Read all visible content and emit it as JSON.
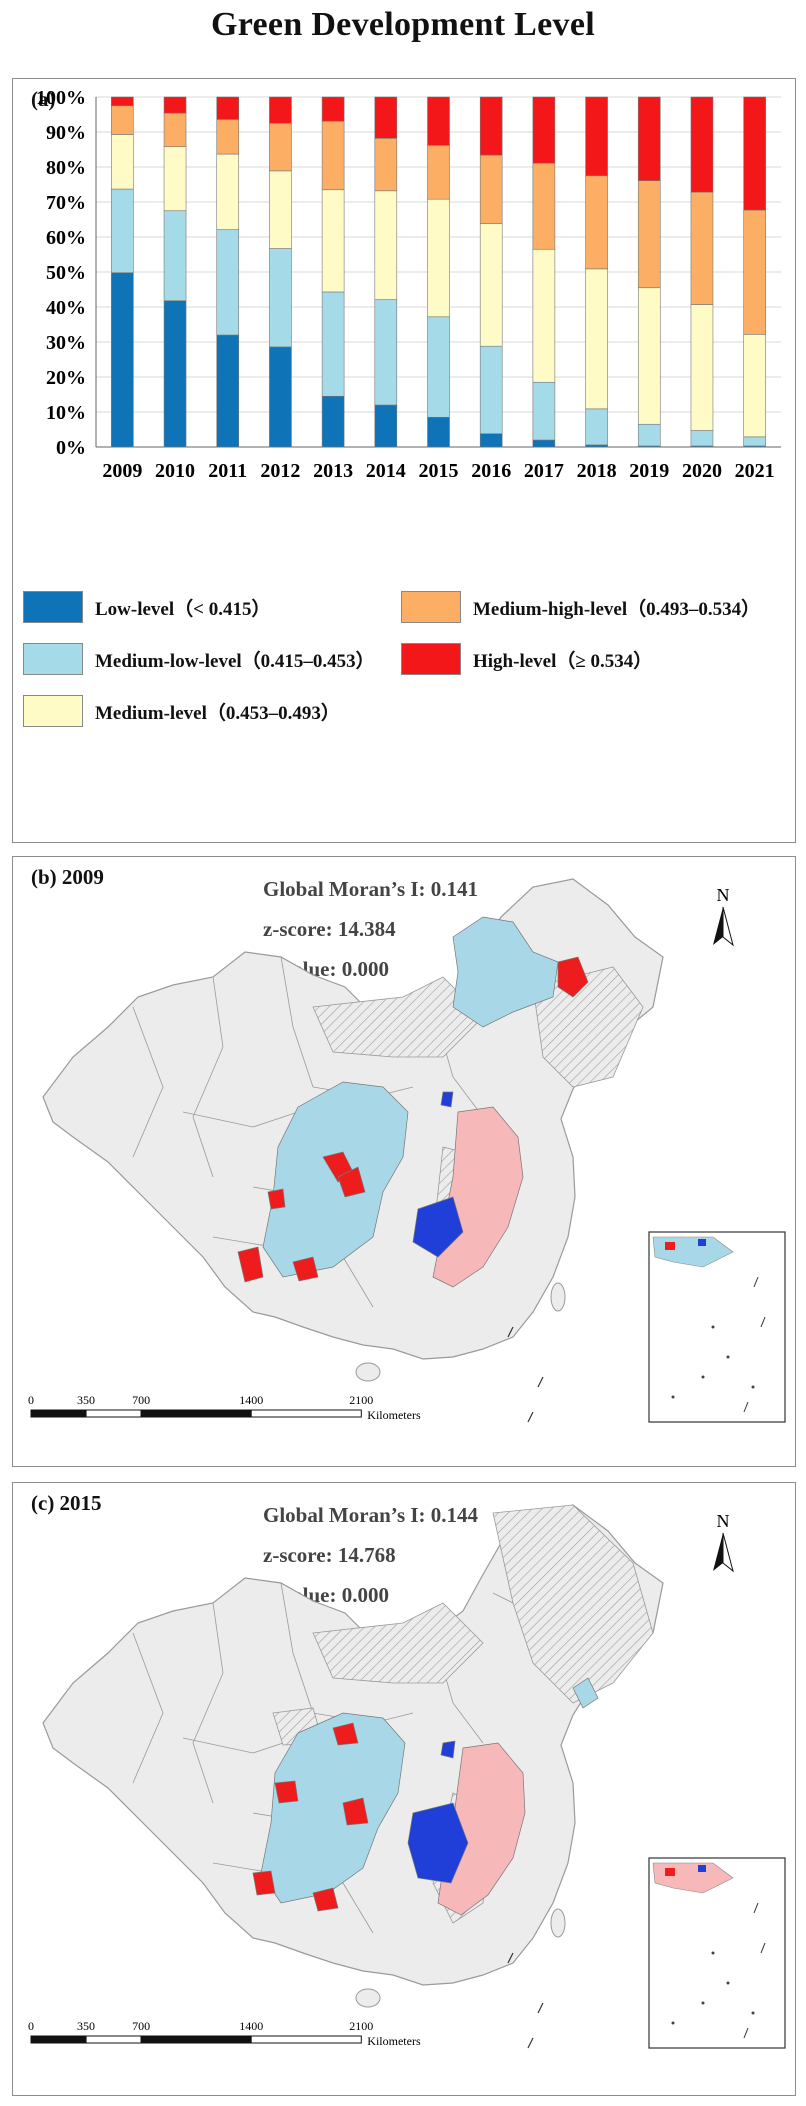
{
  "title": "Green Development Level",
  "chart_data": {
    "type": "bar",
    "stacked": true,
    "panel_label": "(a)",
    "categories": [
      "2009",
      "2010",
      "2011",
      "2012",
      "2013",
      "2014",
      "2015",
      "2016",
      "2017",
      "2018",
      "2019",
      "2020",
      "2021"
    ],
    "y_ticks": [
      "0%",
      "10%",
      "20%",
      "30%",
      "40%",
      "50%",
      "60%",
      "70%",
      "80%",
      "90%",
      "100%"
    ],
    "ylim": [
      0,
      100
    ],
    "grid": true,
    "series": [
      {
        "name": "Low-level（< 0.415）",
        "color": "#0e73b7",
        "values": [
          49.8,
          41.8,
          32.0,
          28.6,
          14.5,
          12.0,
          8.5,
          3.8,
          2.0,
          0.6,
          0.3,
          0.3,
          0.3
        ]
      },
      {
        "name": "Medium-low-level（0.415–0.453）",
        "color": "#a5dbe9",
        "values": [
          23.9,
          25.7,
          30.1,
          28.1,
          29.8,
          30.1,
          28.7,
          25.0,
          16.5,
          10.3,
          6.2,
          4.4,
          2.6
        ]
      },
      {
        "name": "Medium-level（0.453–0.493）",
        "color": "#fefbc6",
        "values": [
          15.6,
          18.3,
          21.6,
          22.2,
          29.2,
          31.1,
          33.6,
          35.0,
          38.0,
          40.0,
          39.0,
          36.0,
          29.3
        ]
      },
      {
        "name": "Medium-high-level（0.493–0.534）",
        "color": "#fbae64",
        "values": [
          8.2,
          9.6,
          9.9,
          13.6,
          19.6,
          15.0,
          15.4,
          19.6,
          24.6,
          26.6,
          30.6,
          32.1,
          35.5
        ]
      },
      {
        "name": "High-level（≥ 0.534）",
        "color": "#f41719",
        "values": [
          2.5,
          4.6,
          6.4,
          7.5,
          6.9,
          11.8,
          13.8,
          16.6,
          18.9,
          22.5,
          23.9,
          27.2,
          32.3
        ]
      }
    ]
  },
  "map_b": {
    "label": "(b) 2009",
    "moran": "Global Moran’s I: 0.141",
    "zscore": "z-score: 14.384",
    "pvalue": "p-value: 0.000"
  },
  "map_c": {
    "label": "(c) 2015",
    "moran": "Global Moran’s I: 0.144",
    "zscore": "z-score: 14.768",
    "pvalue": "p-value: 0.000"
  },
  "map_common": {
    "north": "N",
    "scale_ticks": [
      "0",
      "350",
      "700",
      "1400",
      "2100"
    ],
    "scale_unit": "Kilometers",
    "colors": {
      "land": "#ececec",
      "border": "#9a9a9a",
      "hot": "#ee1c1c",
      "cold": "#1f3fd8",
      "high_low": "#f6b8b8",
      "low_high": "#a8d8e8",
      "hatch": "#9e9e9e"
    }
  }
}
